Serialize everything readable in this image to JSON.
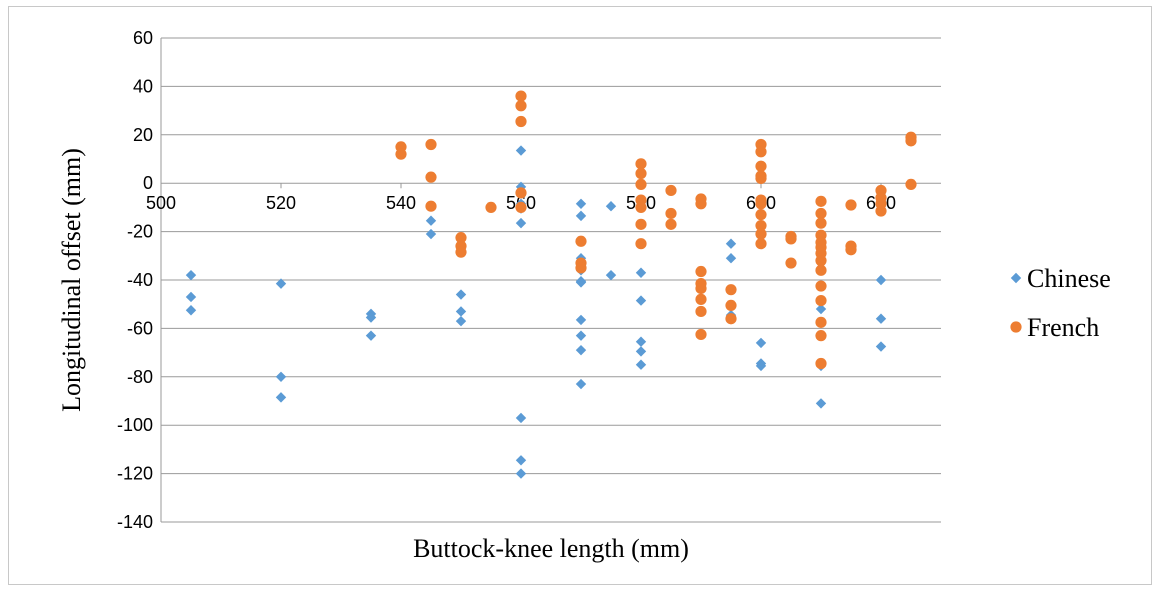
{
  "chart_data": {
    "type": "scatter",
    "title": "",
    "xlabel": "Buttock-knee length (mm)",
    "ylabel": "Longitudinal offset (mm)",
    "xlim": [
      500,
      630
    ],
    "ylim": [
      -140,
      60
    ],
    "xticks": [
      500,
      520,
      540,
      560,
      580,
      600,
      620
    ],
    "yticks": [
      60,
      40,
      20,
      0,
      -20,
      -40,
      -60,
      -80,
      -100,
      -120,
      -140
    ],
    "grid": "horizontal",
    "legend_position": "right",
    "series": [
      {
        "name": "Chinese",
        "color": "#5b9bd5",
        "marker": "diamond",
        "points": [
          [
            505,
            -38
          ],
          [
            505,
            -47
          ],
          [
            505,
            -52.5
          ],
          [
            520,
            -41.5
          ],
          [
            520,
            -80
          ],
          [
            520,
            -88.5
          ],
          [
            535,
            -54
          ],
          [
            535,
            -55.5
          ],
          [
            535,
            -63
          ],
          [
            545,
            -15.5
          ],
          [
            545,
            -21
          ],
          [
            550,
            -46
          ],
          [
            550,
            -53
          ],
          [
            550,
            -57
          ],
          [
            560,
            13.5
          ],
          [
            560,
            -1.5
          ],
          [
            560,
            -8.5
          ],
          [
            560,
            -10.5
          ],
          [
            560,
            -16.5
          ],
          [
            560,
            -97
          ],
          [
            560,
            -114.5
          ],
          [
            560,
            -120
          ],
          [
            570,
            -8.5
          ],
          [
            570,
            -13.5
          ],
          [
            570,
            -31
          ],
          [
            570,
            -36
          ],
          [
            570,
            -40.5
          ],
          [
            570,
            -41
          ],
          [
            570,
            -56.5
          ],
          [
            570,
            -63
          ],
          [
            570,
            -69
          ],
          [
            570,
            -83
          ],
          [
            575,
            -9.5
          ],
          [
            575,
            -38
          ],
          [
            580,
            -37
          ],
          [
            580,
            -48.5
          ],
          [
            580,
            -65.5
          ],
          [
            580,
            -69.5
          ],
          [
            580,
            -75
          ],
          [
            595,
            -25
          ],
          [
            595,
            -31
          ],
          [
            595,
            -54.5
          ],
          [
            600,
            -66
          ],
          [
            600,
            -74.5
          ],
          [
            600,
            -75.5
          ],
          [
            610,
            -52
          ],
          [
            610,
            -75.5
          ],
          [
            610,
            -91
          ],
          [
            620,
            -40
          ],
          [
            620,
            -56
          ],
          [
            620,
            -67.5
          ]
        ]
      },
      {
        "name": "French",
        "color": "#ed7d31",
        "marker": "circle",
        "points": [
          [
            540,
            15
          ],
          [
            540,
            12
          ],
          [
            545,
            16
          ],
          [
            545,
            2.5
          ],
          [
            545,
            -9.5
          ],
          [
            550,
            -22.5
          ],
          [
            550,
            -26
          ],
          [
            550,
            -28.5
          ],
          [
            555,
            -10
          ],
          [
            560,
            36
          ],
          [
            560,
            32
          ],
          [
            560,
            25.5
          ],
          [
            560,
            -4
          ],
          [
            560,
            -10
          ],
          [
            570,
            -24
          ],
          [
            570,
            -33
          ],
          [
            570,
            -35
          ],
          [
            580,
            8
          ],
          [
            580,
            4
          ],
          [
            580,
            -0.5
          ],
          [
            580,
            -7
          ],
          [
            580,
            -10
          ],
          [
            580,
            -17
          ],
          [
            580,
            -25
          ],
          [
            585,
            -3
          ],
          [
            585,
            -12.5
          ],
          [
            585,
            -17
          ],
          [
            590,
            -6.5
          ],
          [
            590,
            -8.5
          ],
          [
            590,
            -36.5
          ],
          [
            590,
            -41.5
          ],
          [
            590,
            -43.5
          ],
          [
            590,
            -48
          ],
          [
            590,
            -53
          ],
          [
            590,
            -62.5
          ],
          [
            595,
            -44
          ],
          [
            595,
            -50.5
          ],
          [
            595,
            -56
          ],
          [
            600,
            16
          ],
          [
            600,
            13
          ],
          [
            600,
            7
          ],
          [
            600,
            3
          ],
          [
            600,
            2
          ],
          [
            600,
            -7
          ],
          [
            600,
            -8.5
          ],
          [
            600,
            -13
          ],
          [
            600,
            -17.5
          ],
          [
            600,
            -21
          ],
          [
            600,
            -25
          ],
          [
            605,
            -22
          ],
          [
            605,
            -23
          ],
          [
            605,
            -33
          ],
          [
            610,
            -7.5
          ],
          [
            610,
            -12.5
          ],
          [
            610,
            -16.5
          ],
          [
            610,
            -21.5
          ],
          [
            610,
            -24.5
          ],
          [
            610,
            -26.5
          ],
          [
            610,
            -29
          ],
          [
            610,
            -32
          ],
          [
            610,
            -36
          ],
          [
            610,
            -42.5
          ],
          [
            610,
            -48.5
          ],
          [
            610,
            -57.5
          ],
          [
            610,
            -63
          ],
          [
            610,
            -74.5
          ],
          [
            615,
            -9
          ],
          [
            615,
            -26
          ],
          [
            615,
            -27.5
          ],
          [
            620,
            -3
          ],
          [
            620,
            -6
          ],
          [
            620,
            -8.5
          ],
          [
            620,
            -11.5
          ],
          [
            625,
            19
          ],
          [
            625,
            17.5
          ],
          [
            625,
            -0.5
          ]
        ]
      }
    ]
  }
}
